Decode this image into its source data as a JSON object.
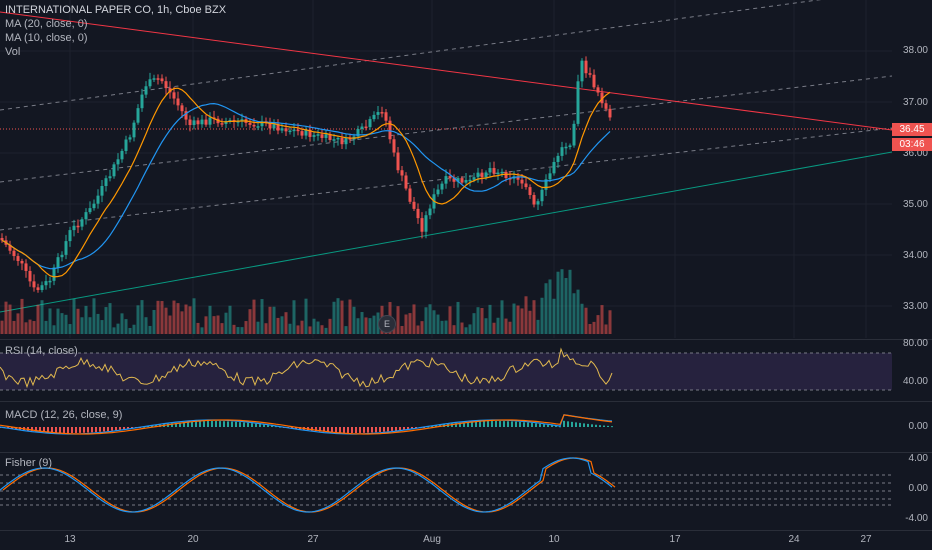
{
  "legend": {
    "title": "INTERNATIONAL PAPER CO, 1h, Cboe BZX",
    "ma20": "MA (20, close, 0)",
    "ma10": "MA (10, close, 0)",
    "vol": "Vol"
  },
  "price_axis": [
    "38.00",
    "37.00",
    "36.00",
    "35.00",
    "34.00",
    "33.00"
  ],
  "current_price": "36.45",
  "countdown": "03:46",
  "rsi": {
    "label": "RSI (14, close)",
    "levels": [
      "80.00",
      "40.00"
    ]
  },
  "macd": {
    "label": "MACD (12, 26, close, 9)",
    "levels": [
      "0.00"
    ]
  },
  "fisher": {
    "label": "Fisher (9)",
    "levels": [
      "4.00",
      "0.00",
      "-4.00"
    ]
  },
  "time_axis": [
    "13",
    "20",
    "27",
    "Aug",
    "10",
    "17",
    "24",
    "27"
  ],
  "earnings_badge": "E",
  "colors": {
    "background": "#131722",
    "up": "#26a69a",
    "down": "#ef5350",
    "ma20": "#2196f3",
    "ma10": "#ff9800",
    "trend_red": "#f23645",
    "trend_green": "#089981",
    "rsi_band": "#7e57c2"
  }
}
